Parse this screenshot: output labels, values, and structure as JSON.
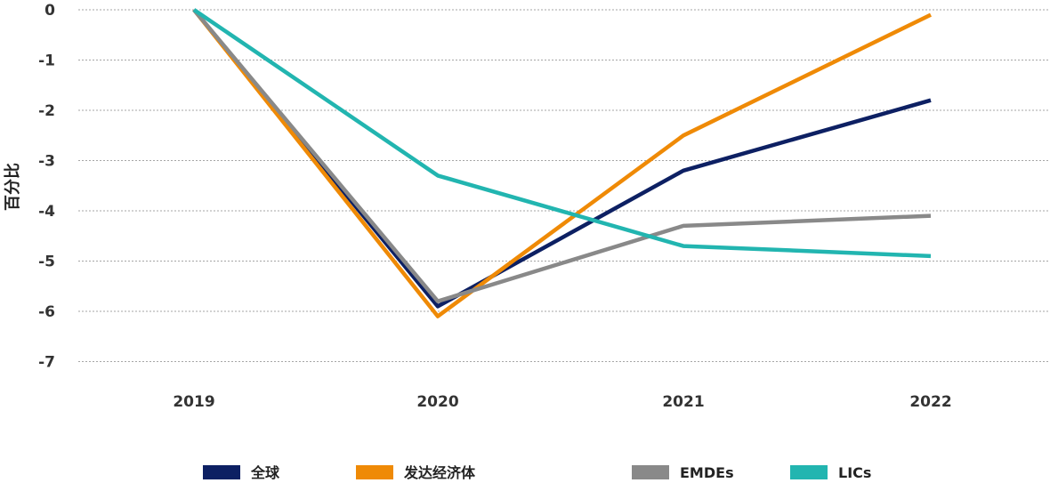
{
  "chart_data": {
    "type": "line",
    "ylabel": "百分比",
    "ylim": [
      -7,
      0
    ],
    "yticks": [
      0,
      -1,
      -2,
      -3,
      -4,
      -5,
      -6,
      -7
    ],
    "categories": [
      "2019",
      "2020",
      "2021",
      "2022"
    ],
    "grid": true,
    "legend_position": "bottom",
    "series": [
      {
        "name": "全球",
        "color": "#0d2063",
        "values": [
          0,
          -5.9,
          -3.2,
          -1.8
        ]
      },
      {
        "name": "发达经济体",
        "color": "#ef8a06",
        "values": [
          0,
          -6.1,
          -2.5,
          -0.1
        ]
      },
      {
        "name": "EMDEs",
        "color": "#898989",
        "values": [
          0,
          -5.8,
          -4.3,
          -4.1
        ]
      },
      {
        "name": "LICs",
        "color": "#22b5b0",
        "values": [
          0,
          -3.3,
          -4.7,
          -4.9
        ]
      }
    ]
  }
}
